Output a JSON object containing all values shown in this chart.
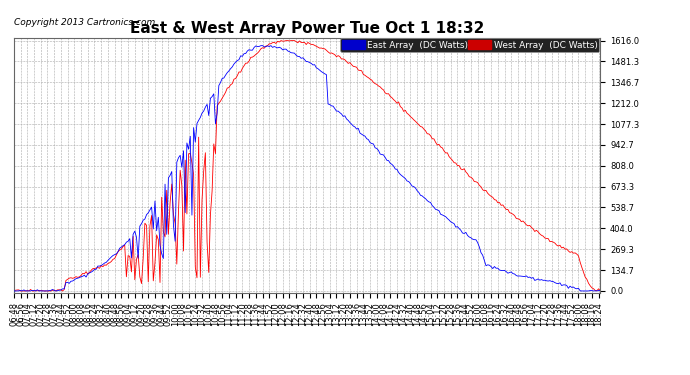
{
  "title": "East & West Array Power Tue Oct 1 18:32",
  "copyright": "Copyright 2013 Cartronics.com",
  "legend_east": "East Array  (DC Watts)",
  "legend_west": "West Array  (DC Watts)",
  "east_color": "#0000ff",
  "west_color": "#ff0000",
  "legend_east_bg": "#0000cc",
  "legend_west_bg": "#cc0000",
  "background_color": "#ffffff",
  "grid_color": "#aaaaaa",
  "yticks": [
    0.0,
    134.7,
    269.3,
    404.0,
    538.7,
    673.3,
    808.0,
    942.7,
    1077.3,
    1212.0,
    1346.7,
    1481.3,
    1616.0
  ],
  "ymax": 1616.0,
  "ymin": 0.0,
  "title_fontsize": 11,
  "tick_fontsize": 6.0,
  "copyright_fontsize": 6.5
}
